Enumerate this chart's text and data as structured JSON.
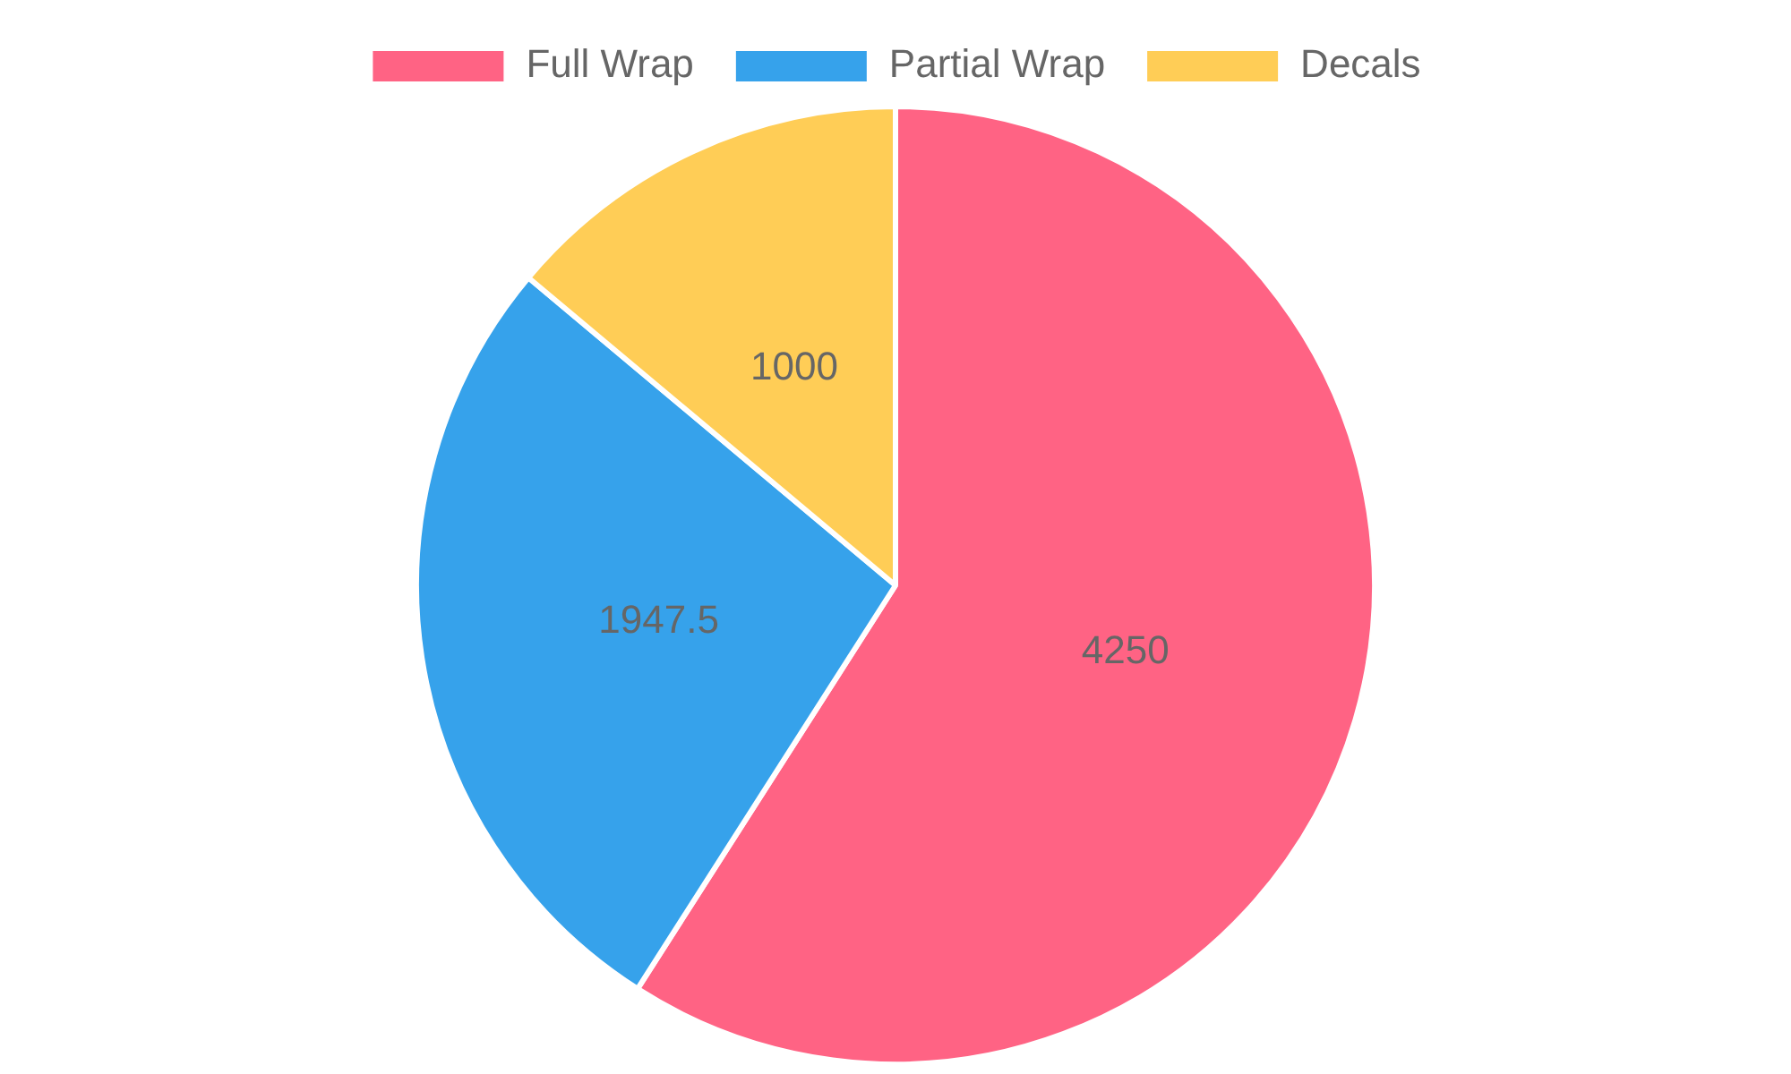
{
  "chart_data": {
    "type": "pie",
    "categories": [
      "Full Wrap",
      "Partial Wrap",
      "Decals"
    ],
    "values": [
      4250,
      1947.5,
      1000
    ],
    "colors": [
      "#ff6384",
      "#36a2eb",
      "#ffcd56"
    ],
    "legend": "top",
    "data_labels": true
  }
}
